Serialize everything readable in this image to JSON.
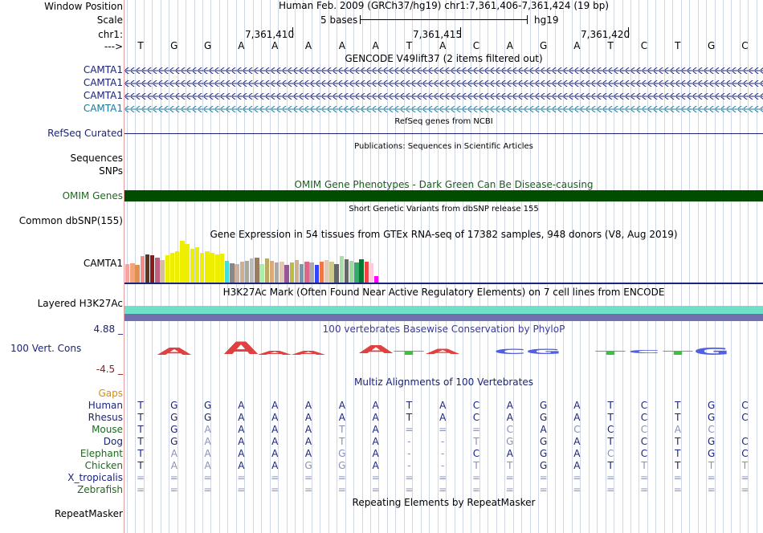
{
  "header": {
    "window_position_label": "Window Position",
    "assembly_position": "Human Feb. 2009 (GRCh37/hg19)   chr1:7,361,406-7,361,424 (19 bp)",
    "scale_label": "Scale",
    "scale_text": "5 bases",
    "scale_db": "hg19",
    "chrom_label": "chr1:",
    "arrow_label": "--->",
    "coord_ticks": [
      "7,361,410",
      "7,361,415",
      "7,361,420"
    ]
  },
  "sequence": [
    "T",
    "G",
    "G",
    "A",
    "A",
    "A",
    "A",
    "A",
    "T",
    "A",
    "C",
    "A",
    "G",
    "A",
    "T",
    "C",
    "T",
    "G",
    "C"
  ],
  "gencode": {
    "title": "GENCODE V49lift37 (2 items filtered out)",
    "transcripts": [
      "CAMTA1",
      "CAMTA1",
      "CAMTA1",
      "CAMTA1"
    ]
  },
  "refseq": {
    "label": "RefSeq Curated",
    "title": "RefSeq genes from NCBI"
  },
  "publications": {
    "title": "Publications: Sequences in Scientific Articles",
    "label1": "Sequences",
    "label2": "SNPs"
  },
  "omim": {
    "title": "OMIM Gene Phenotypes - Dark Green Can Be Disease-causing",
    "label": "OMIM Genes"
  },
  "dbsnp": {
    "title": "Short Genetic Variants from dbSNP release 155",
    "label": "Common dbSNP(155)"
  },
  "gtex": {
    "title": "Gene Expression in 54 tissues from GTEx RNA-seq of 17382 samples, 948 donors (V8, Aug 2019)",
    "label": "CAMTA1",
    "bars": [
      {
        "v": 0.45,
        "c": "#f5a3a3"
      },
      {
        "v": 0.47,
        "c": "#f5a47a"
      },
      {
        "v": 0.43,
        "c": "#e09050"
      },
      {
        "v": 0.63,
        "c": "#f58a8a"
      },
      {
        "v": 0.68,
        "c": "#5a3520"
      },
      {
        "v": 0.66,
        "c": "#8b1a1a"
      },
      {
        "v": 0.6,
        "c": "#c06080"
      },
      {
        "v": 0.53,
        "c": "#d0c0a0"
      },
      {
        "v": 0.65,
        "c": "#eeee00"
      },
      {
        "v": 0.72,
        "c": "#eeee00"
      },
      {
        "v": 0.75,
        "c": "#eeee00"
      },
      {
        "v": 1.0,
        "c": "#eeee00"
      },
      {
        "v": 0.92,
        "c": "#eeee00"
      },
      {
        "v": 0.8,
        "c": "#eeee00"
      },
      {
        "v": 0.85,
        "c": "#eeee00"
      },
      {
        "v": 0.72,
        "c": "#eeee00"
      },
      {
        "v": 0.75,
        "c": "#eeee00"
      },
      {
        "v": 0.72,
        "c": "#eeee00"
      },
      {
        "v": 0.68,
        "c": "#eeee00"
      },
      {
        "v": 0.7,
        "c": "#eeee00"
      },
      {
        "v": 0.52,
        "c": "#44dddd"
      },
      {
        "v": 0.47,
        "c": "#888888"
      },
      {
        "v": 0.45,
        "c": "#ccb0a0"
      },
      {
        "v": 0.5,
        "c": "#ccb090"
      },
      {
        "v": 0.52,
        "c": "#aaaa99"
      },
      {
        "v": 0.58,
        "c": "#bbbbbb"
      },
      {
        "v": 0.6,
        "c": "#9a7a60"
      },
      {
        "v": 0.45,
        "c": "#aaeeaa"
      },
      {
        "v": 0.58,
        "c": "#bbaa66"
      },
      {
        "v": 0.52,
        "c": "#ddaa77"
      },
      {
        "v": 0.48,
        "c": "#aaaaaa"
      },
      {
        "v": 0.5,
        "c": "#e0c8b0"
      },
      {
        "v": 0.43,
        "c": "#995599"
      },
      {
        "v": 0.48,
        "c": "#bbbb44"
      },
      {
        "v": 0.53,
        "c": "#ccb090"
      },
      {
        "v": 0.45,
        "c": "#7799aa"
      },
      {
        "v": 0.5,
        "c": "#dd6688"
      },
      {
        "v": 0.48,
        "c": "#aaaaaa"
      },
      {
        "v": 0.42,
        "c": "#3344ff"
      },
      {
        "v": 0.5,
        "c": "#ee7744"
      },
      {
        "v": 0.53,
        "c": "#ddccbb"
      },
      {
        "v": 0.5,
        "c": "#cccc88"
      },
      {
        "v": 0.45,
        "c": "#666666"
      },
      {
        "v": 0.63,
        "c": "#aaddaa"
      },
      {
        "v": 0.55,
        "c": "#666666"
      },
      {
        "v": 0.52,
        "c": "#99dd99"
      },
      {
        "v": 0.48,
        "c": "#33aa66"
      },
      {
        "v": 0.55,
        "c": "#007733"
      },
      {
        "v": 0.5,
        "c": "#ee4444"
      },
      {
        "v": 0.47,
        "c": "#ffccdd"
      },
      {
        "v": 0.15,
        "c": "#ff00ff"
      }
    ]
  },
  "h3k27ac": {
    "title": "H3K27Ac Mark (Often Found Near Active Regulatory Elements) on 7 cell lines from ENCODE",
    "label": "Layered H3K27Ac"
  },
  "conservation": {
    "title": "100 vertebrates Basewise Conservation by PhyloP",
    "label": "100 Vert. Cons",
    "ymax": "4.88 _",
    "ymin": "-4.5 _",
    "logo": [
      {
        "pos": 1,
        "b": "A",
        "h": 5,
        "c": "#e04040"
      },
      {
        "pos": 3,
        "b": "A",
        "h": 11,
        "c": "#e04040"
      },
      {
        "pos": 4,
        "b": "A",
        "h": 2,
        "c": "#e04040"
      },
      {
        "pos": 5,
        "b": "A",
        "h": 2,
        "c": "#e04040"
      },
      {
        "pos": 7,
        "b": "A",
        "h": 6,
        "c": "#e04040"
      },
      {
        "pos": 8,
        "b": "T",
        "h": 2,
        "c": "#40c040"
      },
      {
        "pos": 9,
        "b": "A",
        "h": 3,
        "c": "#e04040"
      },
      {
        "pos": 11,
        "b": "C",
        "h": 3,
        "c": "#5060e0"
      },
      {
        "pos": 12,
        "b": "G",
        "h": 3,
        "c": "#5060e0"
      },
      {
        "pos": 14,
        "b": "T",
        "h": 2,
        "c": "#40c040"
      },
      {
        "pos": 15,
        "b": "C",
        "h": 1,
        "c": "#5060e0"
      },
      {
        "pos": 16,
        "b": "T",
        "h": 2,
        "c": "#40c040"
      },
      {
        "pos": 17,
        "b": "G",
        "h": 5,
        "c": "#5060e0"
      }
    ]
  },
  "multiz": {
    "title": "Multiz Alignments of 100 Vertebrates",
    "gaps_label": "Gaps",
    "species": [
      {
        "name": "Human",
        "color": "#1a237e",
        "bases": [
          "T",
          "G",
          "G",
          "A",
          "A",
          "A",
          "A",
          "A",
          "T",
          "A",
          "C",
          "A",
          "G",
          "A",
          "T",
          "C",
          "T",
          "G",
          "C"
        ],
        "dim": []
      },
      {
        "name": "Rhesus",
        "color": "#1a237e",
        "bases": [
          "T",
          "G",
          "G",
          "A",
          "A",
          "A",
          "A",
          "A",
          "T",
          "A",
          "C",
          "A",
          "G",
          "A",
          "T",
          "C",
          "T",
          "G",
          "C"
        ],
        "dim": []
      },
      {
        "name": "Mouse",
        "color": "#1b6b1b",
        "bases": [
          "T",
          "G",
          "A",
          "A",
          "A",
          "A",
          "T",
          "A",
          "=",
          "=",
          "=",
          "C",
          "A",
          "C",
          "C",
          "C",
          "A",
          "C",
          ""
        ],
        "dim": [
          2,
          6,
          8,
          9,
          10,
          11,
          13,
          15,
          16,
          17
        ]
      },
      {
        "name": "Dog",
        "color": "#1a237e",
        "bases": [
          "T",
          "G",
          "A",
          "A",
          "A",
          "A",
          "T",
          "A",
          "-",
          "-",
          "T",
          "G",
          "G",
          "A",
          "T",
          "C",
          "T",
          "G",
          "C"
        ],
        "dim": [
          2,
          6,
          8,
          9,
          10,
          11
        ]
      },
      {
        "name": "Elephant",
        "color": "#1b6b1b",
        "bases": [
          "T",
          "A",
          "A",
          "A",
          "A",
          "A",
          "G",
          "A",
          "-",
          "-",
          "C",
          "A",
          "G",
          "A",
          "C",
          "C",
          "T",
          "G",
          "C"
        ],
        "dim": [
          1,
          2,
          6,
          8,
          9,
          14
        ]
      },
      {
        "name": "Chicken",
        "color": "#1b6b1b",
        "bases": [
          "T",
          "A",
          "A",
          "A",
          "A",
          "G",
          "G",
          "A",
          "-",
          "-",
          "T",
          "T",
          "G",
          "A",
          "T",
          "T",
          "T",
          "T",
          "T"
        ],
        "dim": [
          1,
          2,
          5,
          6,
          8,
          9,
          10,
          11,
          15,
          17,
          18
        ]
      },
      {
        "name": "X_tropicalis",
        "color": "#1a237e",
        "bases": [
          "=",
          "=",
          "=",
          "=",
          "=",
          "=",
          "=",
          "=",
          "=",
          "=",
          "=",
          "=",
          "=",
          "=",
          "=",
          "=",
          "=",
          "=",
          "="
        ],
        "dim": "all"
      },
      {
        "name": "Zebrafish",
        "color": "#1b6b1b",
        "bases": [
          "=",
          "=",
          "=",
          "=",
          "=",
          "=",
          "=",
          "=",
          "=",
          "=",
          "=",
          "=",
          "=",
          "=",
          "=",
          "=",
          "=",
          "=",
          "="
        ],
        "dim": "all"
      }
    ]
  },
  "repeatmasker": {
    "title": "Repeating Elements by RepeatMasker",
    "label": "RepeatMasker"
  }
}
